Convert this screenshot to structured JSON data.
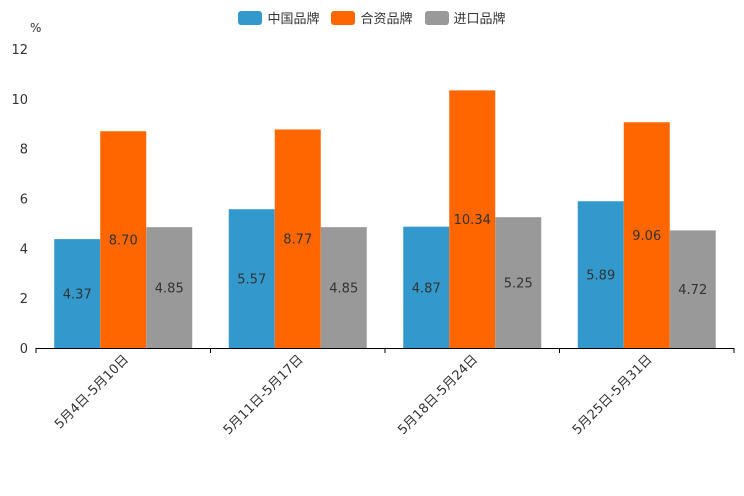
{
  "chart_data": {
    "type": "bar",
    "unit_label": "%",
    "categories": [
      "5月4日-5月10日",
      "5月11日-5月17日",
      "5月18日-5月24日",
      "5月25日-5月31日"
    ],
    "series": [
      {
        "name": "中国品牌",
        "color": "#3399cc",
        "values": [
          4.37,
          5.57,
          4.87,
          5.89
        ]
      },
      {
        "name": "合资品牌",
        "color": "#ff6600",
        "values": [
          8.7,
          8.77,
          10.34,
          9.06
        ]
      },
      {
        "name": "进口品牌",
        "color": "#999999",
        "values": [
          4.85,
          4.85,
          5.25,
          4.72
        ]
      }
    ],
    "data_labels": [
      [
        "4.37",
        "5.57",
        "4.87",
        "5.89"
      ],
      [
        "8.70",
        "8.77",
        "10.34",
        "9.06"
      ],
      [
        "4.85",
        "4.85",
        "5.25",
        "4.72"
      ]
    ],
    "ylim": [
      0,
      12
    ],
    "yticks": [
      "0",
      "2",
      "4",
      "6",
      "8",
      "10",
      "12"
    ],
    "legend_position": "top-center"
  }
}
